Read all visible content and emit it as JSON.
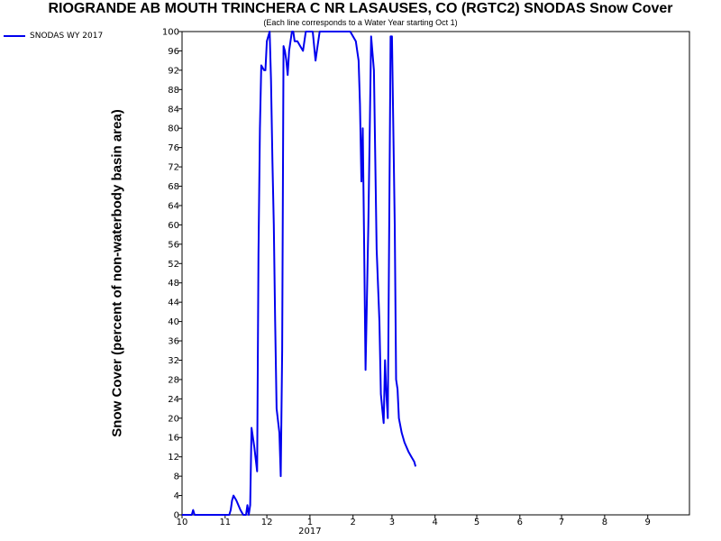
{
  "chart_data": {
    "type": "line",
    "title": "RIOGRANDE AB MOUTH TRINCHERA C NR LASAUSES, CO (RGTC2) SNODAS Snow Cover",
    "subtitle": "(Each line corresponds to a Water Year starting Oct 1)",
    "xlabel": "",
    "ylabel": "Snow Cover (percent of non-waterbody basin area)",
    "x_tick_labels": [
      "10",
      "11",
      "12",
      "1",
      "2",
      "3",
      "4",
      "5",
      "6",
      "7",
      "8",
      "9"
    ],
    "x_year_label": "2017",
    "y_ticks": [
      0,
      4,
      8,
      12,
      16,
      20,
      24,
      28,
      32,
      36,
      40,
      44,
      48,
      52,
      56,
      60,
      64,
      68,
      72,
      76,
      80,
      84,
      88,
      92,
      96,
      100
    ],
    "ylim": [
      0,
      100
    ],
    "xlim": [
      "2016-10-01",
      "2017-10-01"
    ],
    "grid": false,
    "legend": "top-left",
    "series": [
      {
        "name": "SNODAS WY 2017",
        "color": "#0000ee",
        "points": [
          [
            "2016-10-01",
            0
          ],
          [
            "2016-10-08",
            0
          ],
          [
            "2016-10-09",
            1
          ],
          [
            "2016-10-10",
            0
          ],
          [
            "2016-10-31",
            0
          ],
          [
            "2016-11-02",
            0
          ],
          [
            "2016-11-04",
            0
          ],
          [
            "2016-11-05",
            1
          ],
          [
            "2016-11-06",
            3
          ],
          [
            "2016-11-07",
            4
          ],
          [
            "2016-11-09",
            3
          ],
          [
            "2016-11-12",
            1
          ],
          [
            "2016-11-14",
            0
          ],
          [
            "2016-11-16",
            0
          ],
          [
            "2016-11-17",
            2
          ],
          [
            "2016-11-18",
            0
          ],
          [
            "2016-11-19",
            2
          ],
          [
            "2016-11-20",
            18
          ],
          [
            "2016-11-22",
            14
          ],
          [
            "2016-11-24",
            9
          ],
          [
            "2016-11-25",
            54
          ],
          [
            "2016-11-26",
            80
          ],
          [
            "2016-11-27",
            93
          ],
          [
            "2016-11-29",
            92
          ],
          [
            "2016-11-30",
            92
          ],
          [
            "2016-12-01",
            98
          ],
          [
            "2016-12-03",
            100
          ],
          [
            "2016-12-04",
            90
          ],
          [
            "2016-12-05",
            73
          ],
          [
            "2016-12-06",
            60
          ],
          [
            "2016-12-07",
            40
          ],
          [
            "2016-12-08",
            22
          ],
          [
            "2016-12-10",
            17
          ],
          [
            "2016-12-11",
            8
          ],
          [
            "2016-12-12",
            34
          ],
          [
            "2016-12-13",
            97
          ],
          [
            "2016-12-14",
            96
          ],
          [
            "2016-12-15",
            94
          ],
          [
            "2016-12-16",
            91
          ],
          [
            "2016-12-17",
            96
          ],
          [
            "2016-12-19",
            100
          ],
          [
            "2016-12-20",
            100
          ],
          [
            "2016-12-21",
            98
          ],
          [
            "2016-12-23",
            98
          ],
          [
            "2016-12-25",
            97
          ],
          [
            "2016-12-27",
            96
          ],
          [
            "2016-12-29",
            100
          ],
          [
            "2017-01-03",
            100
          ],
          [
            "2017-01-05",
            94
          ],
          [
            "2017-01-06",
            96
          ],
          [
            "2017-01-08",
            100
          ],
          [
            "2017-01-30",
            100
          ],
          [
            "2017-02-01",
            99
          ],
          [
            "2017-02-03",
            98
          ],
          [
            "2017-02-05",
            94
          ],
          [
            "2017-02-06",
            85
          ],
          [
            "2017-02-07",
            69
          ],
          [
            "2017-02-08",
            80
          ],
          [
            "2017-02-09",
            55
          ],
          [
            "2017-02-10",
            30
          ],
          [
            "2017-02-12",
            60
          ],
          [
            "2017-02-14",
            99
          ],
          [
            "2017-02-16",
            92
          ],
          [
            "2017-02-18",
            55
          ],
          [
            "2017-02-20",
            40
          ],
          [
            "2017-02-21",
            25
          ],
          [
            "2017-02-22",
            22
          ],
          [
            "2017-02-23",
            19
          ],
          [
            "2017-02-24",
            32
          ],
          [
            "2017-02-25",
            25
          ],
          [
            "2017-02-26",
            20
          ],
          [
            "2017-02-28",
            99
          ],
          [
            "2017-03-01",
            99
          ],
          [
            "2017-03-03",
            60
          ],
          [
            "2017-03-04",
            28
          ],
          [
            "2017-03-05",
            26
          ],
          [
            "2017-03-06",
            20
          ],
          [
            "2017-03-08",
            17
          ],
          [
            "2017-03-10",
            15
          ],
          [
            "2017-03-13",
            13
          ],
          [
            "2017-03-15",
            12
          ],
          [
            "2017-03-17",
            11
          ],
          [
            "2017-03-18",
            10
          ]
        ]
      }
    ]
  }
}
